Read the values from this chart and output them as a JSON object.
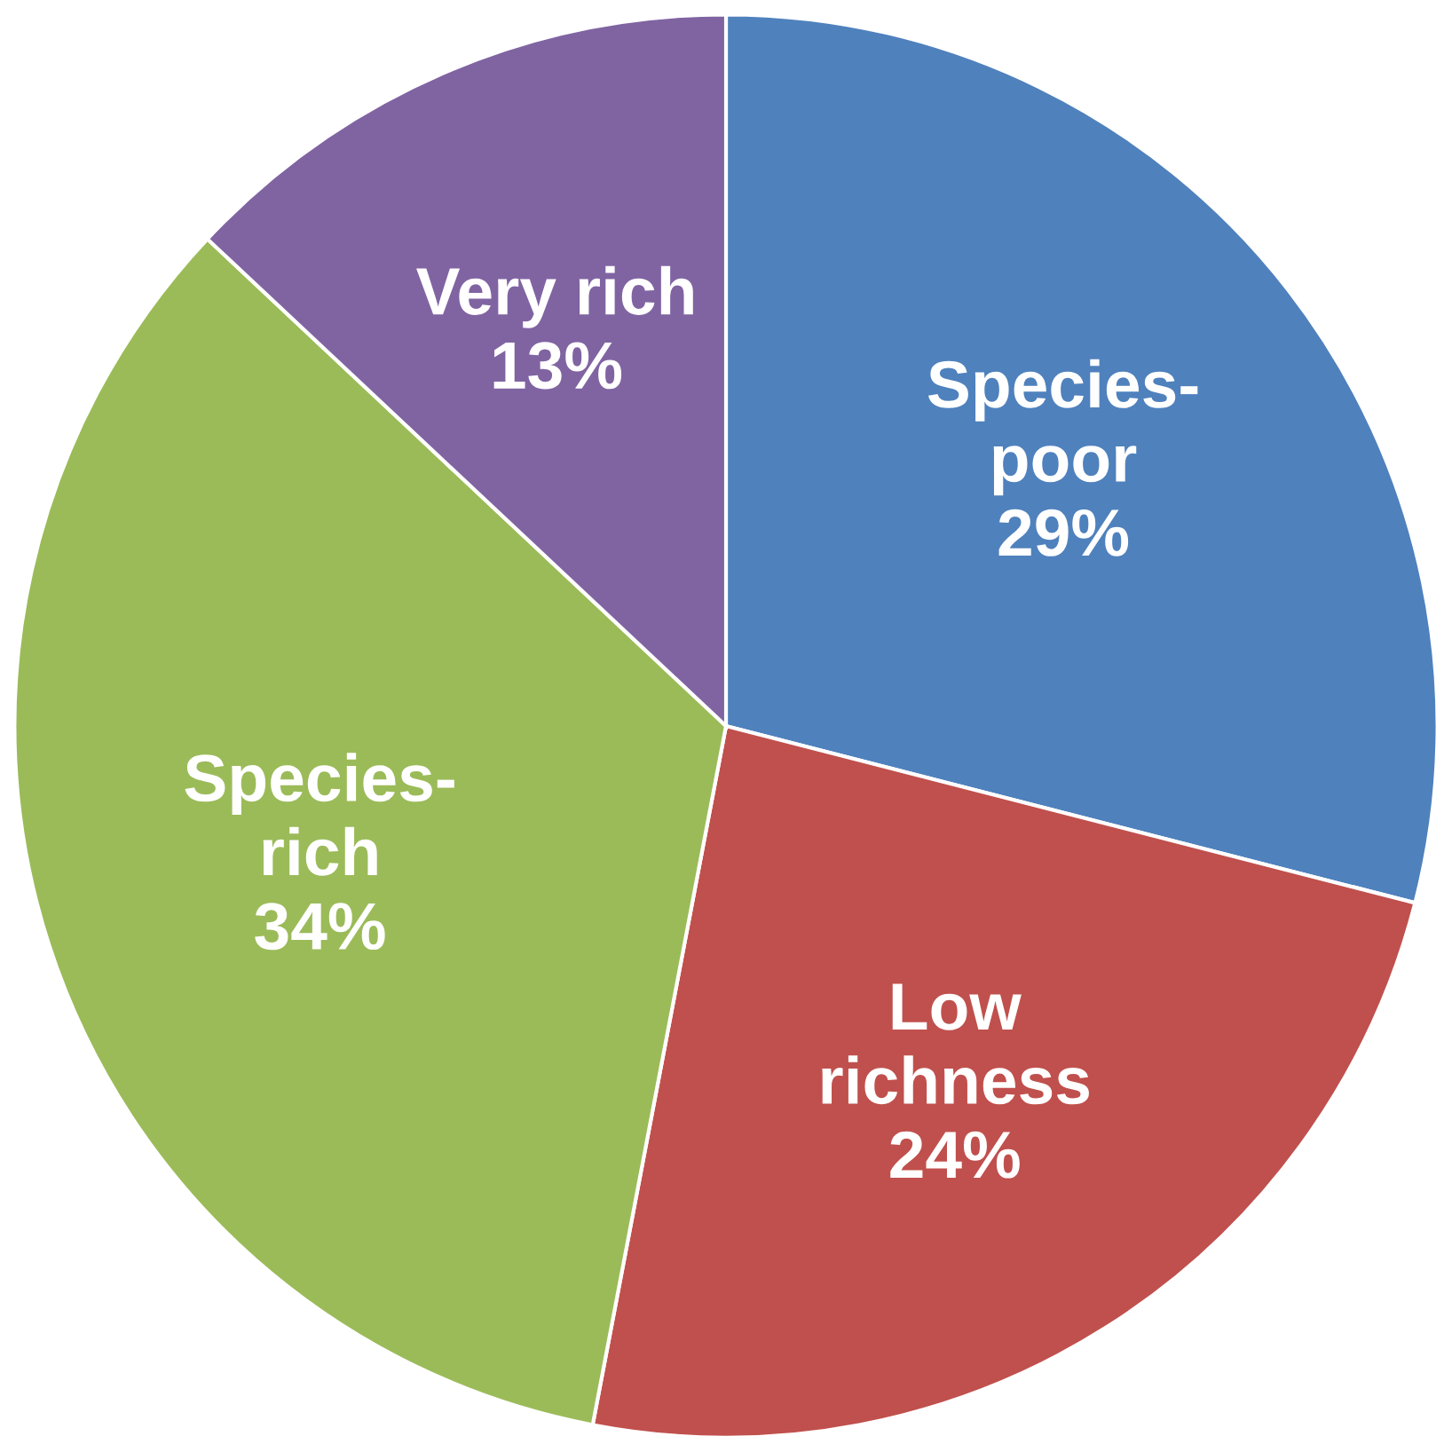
{
  "chart_data": {
    "type": "pie",
    "categories": [
      "Species-poor",
      "Low richness",
      "Species-rich",
      "Very rich"
    ],
    "values": [
      29,
      24,
      34,
      13
    ],
    "colors": [
      "#4f81bd",
      "#c0504d",
      "#9bbb59",
      "#8064a2"
    ],
    "value_labels": [
      "29%",
      "24%",
      "34%",
      "13%"
    ]
  }
}
